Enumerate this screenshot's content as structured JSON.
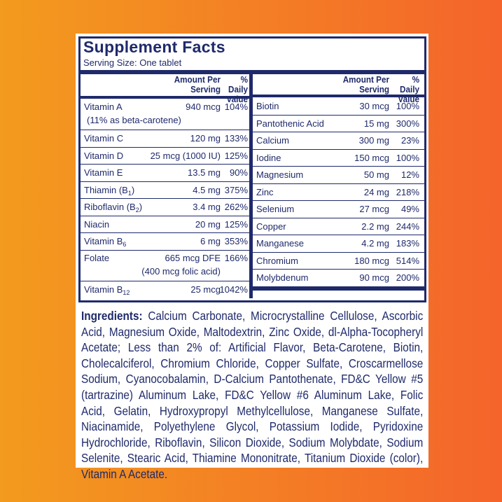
{
  "header": {
    "title": "Supplement Facts",
    "serving": "Serving Size: One tablet"
  },
  "columns": [
    {
      "header_amount": "Amount Per Serving",
      "header_dv": "% Daily Value",
      "rows": [
        {
          "name": "Vitamin A",
          "note": "(11% as beta-carotene)",
          "amount": "940 mcg",
          "dv": "104%"
        },
        {
          "name": "Vitamin C",
          "amount": "120 mg",
          "dv": "133%"
        },
        {
          "name": "Vitamin D",
          "amount": "25 mcg (1000 IU)",
          "dv": "125%"
        },
        {
          "name": "Vitamin E",
          "amount": "13.5 mg",
          "dv": "90%"
        },
        {
          "name": "Thiamin (B",
          "sub": "1",
          "suffix": ")",
          "amount": "4.5 mg",
          "dv": "375%"
        },
        {
          "name": "Riboflavin (B",
          "sub": "2",
          "suffix": ")",
          "amount": "3.4 mg",
          "dv": "262%"
        },
        {
          "name": "Niacin",
          "amount": "20 mg",
          "dv": "125%"
        },
        {
          "name": "Vitamin B",
          "sub": "6",
          "amount": "6 mg",
          "dv": "353%"
        },
        {
          "name": "Folate",
          "amount": "665 mcg DFE",
          "note": "(400 mcg folic acid)",
          "dv": "166%"
        },
        {
          "name": "Vitamin B",
          "sub": "12",
          "amount": "25 mcg",
          "dv": "1042%"
        }
      ]
    },
    {
      "header_amount": "Amount Per Serving",
      "header_dv": "% Daily Value",
      "rows": [
        {
          "name": "Biotin",
          "amount": "30 mcg",
          "dv": "100%"
        },
        {
          "name": "Pantothenic Acid",
          "amount": "15 mg",
          "dv": "300%"
        },
        {
          "name": "Calcium",
          "amount": "300 mg",
          "dv": "23%"
        },
        {
          "name": "Iodine",
          "amount": "150 mcg",
          "dv": "100%"
        },
        {
          "name": "Magnesium",
          "amount": "50 mg",
          "dv": "12%"
        },
        {
          "name": "Zinc",
          "amount": "24 mg",
          "dv": "218%"
        },
        {
          "name": "Selenium",
          "amount": "27 mcg",
          "dv": "49%"
        },
        {
          "name": "Copper",
          "amount": "2.2 mg",
          "dv": "244%"
        },
        {
          "name": "Manganese",
          "amount": "4.2 mg",
          "dv": "183%"
        },
        {
          "name": "Chromium",
          "amount": "180 mcg",
          "dv": "514%"
        },
        {
          "name": "Molybdenum",
          "amount": "90 mcg",
          "dv": "200%"
        }
      ]
    }
  ],
  "ingredients": {
    "label": "Ingredients:",
    "text": "Calcium Carbonate, Microcrystalline Cellulose, Ascorbic Acid, Magnesium Oxide, Maltodextrin, Zinc Oxide, dl-Alpha-Tocopheryl Acetate; Less than 2% of: Artificial Flavor, Beta-Carotene, Biotin, Cholecalciferol, Chromium Chloride, Copper Sulfate, Croscarmellose Sodium, Cyanocobalamin, D-Calcium Pantothenate, FD&C Yellow #5 (tartrazine) Aluminum Lake, FD&C Yellow #6 Aluminum Lake, Folic Acid, Gelatin, Hydroxypropyl Methylcellulose, Manganese Sulfate, Niacinamide, Polyethylene Glycol, Potassium Iodide, Pyridoxine Hydrochloride, Riboflavin, Silicon Dioxide, Sodium Molybdate, Sodium Selenite, Stearic Acid, Thiamine Mononitrate, Titanium Dioxide (color), Vitamin A Acetate."
  }
}
